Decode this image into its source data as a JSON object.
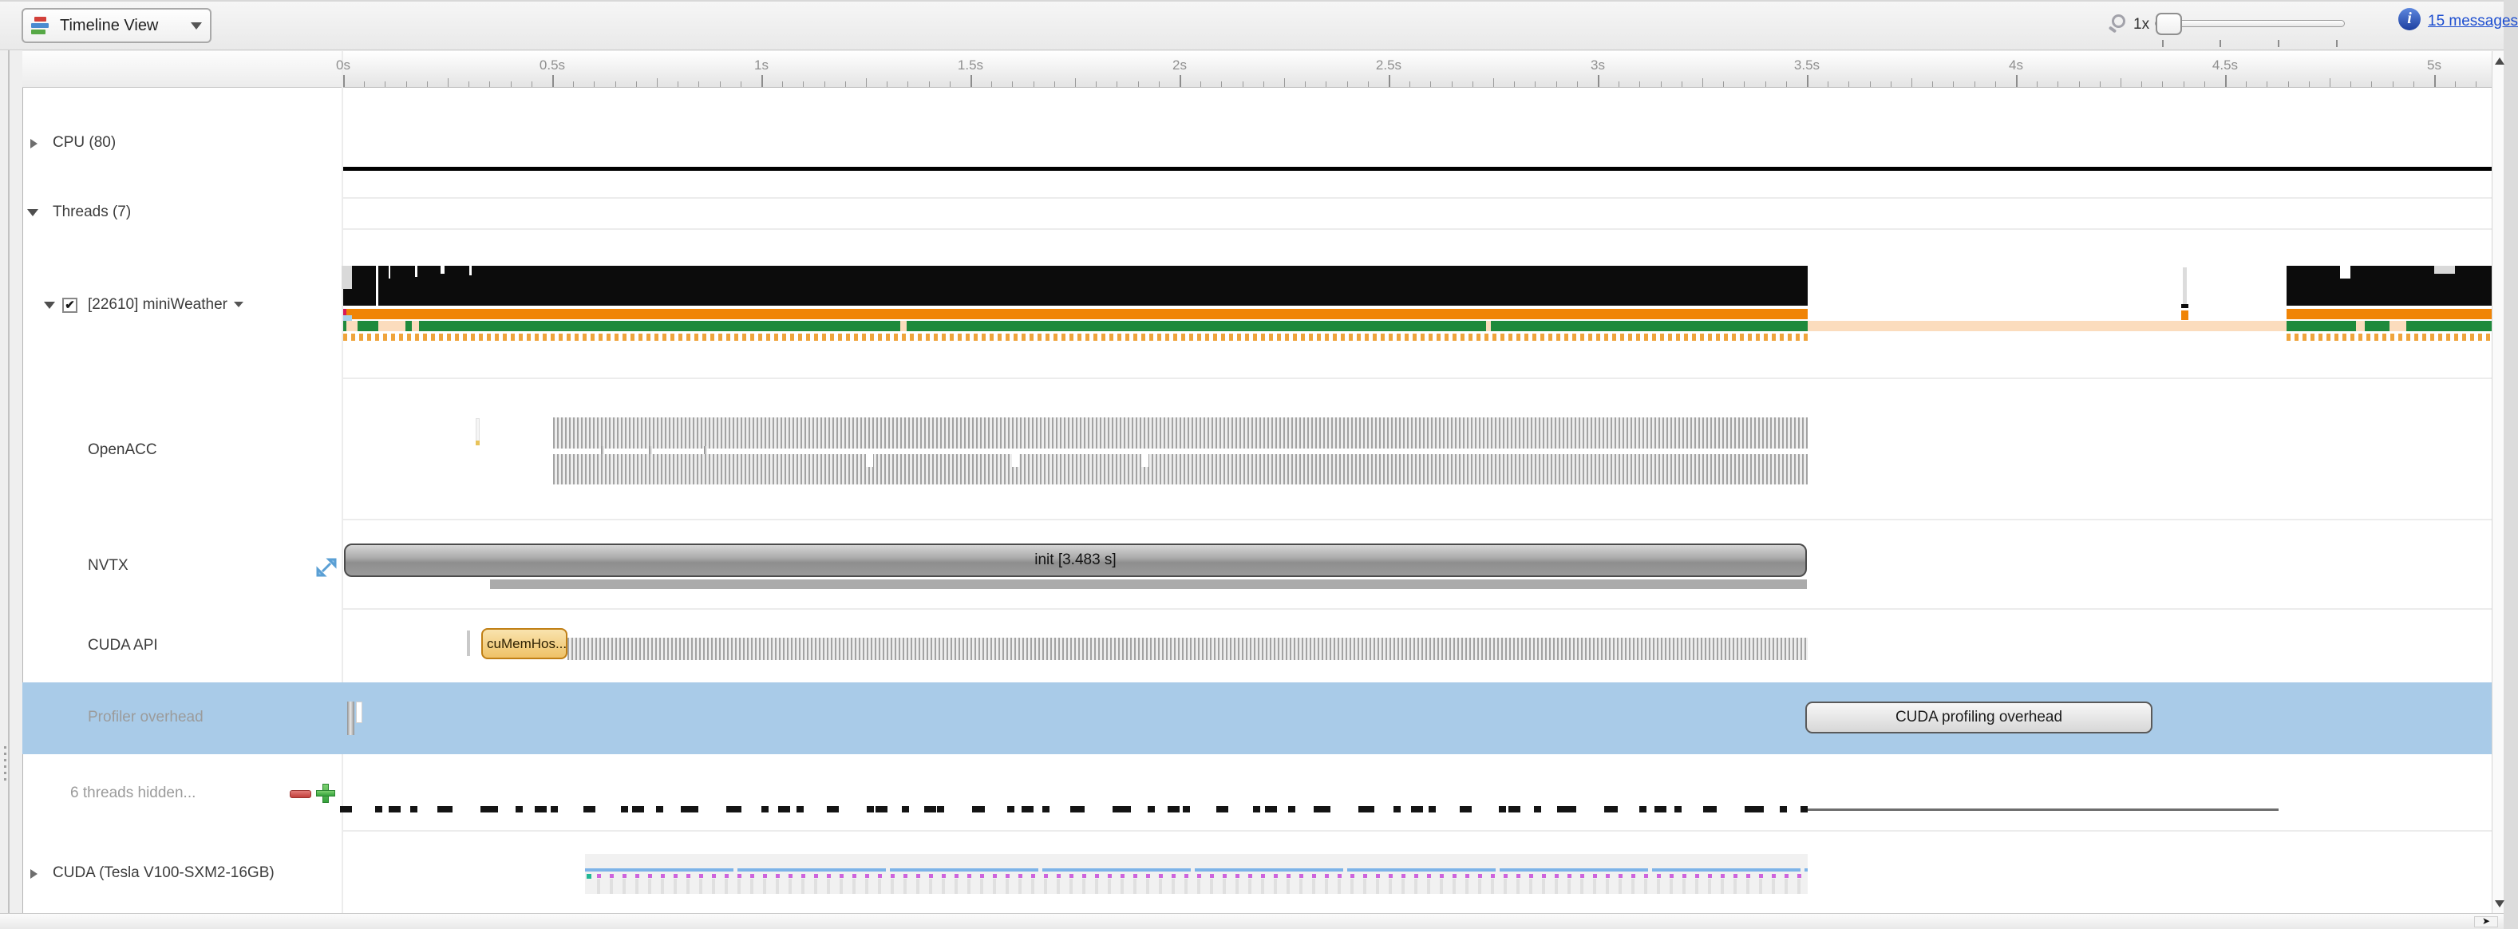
{
  "toolbar": {
    "view_selector_label": "Timeline View",
    "zoom_level": "1x",
    "messages_link": "15 messages"
  },
  "ruler": {
    "labels": [
      "0s",
      "0.5s",
      "1s",
      "1.5s",
      "2s",
      "2.5s",
      "3s",
      "3.5s",
      "4s",
      "4.5s",
      "5s"
    ]
  },
  "sidebar": {
    "rows": [
      {
        "label": "CPU (80)"
      },
      {
        "label": "Threads (7)"
      },
      {
        "label": "[22610] miniWeather"
      },
      {
        "label": "OpenACC"
      },
      {
        "label": "NVTX"
      },
      {
        "label": "CUDA API"
      },
      {
        "label": "Profiler overhead"
      },
      {
        "label": "6 threads hidden..."
      },
      {
        "label": "CUDA (Tesla V100-SXM2-16GB)"
      }
    ],
    "checkbox_glyph": "✔"
  },
  "timeline": {
    "nvtx_init_label": "init [3.483 s]",
    "cuda_api_first_label": "cuMemHos...",
    "profiler_overhead_label": "CUDA profiling overhead"
  },
  "colors": {
    "thread_black": "#0c0c0c",
    "os_runtime_orange": "#f08405",
    "thread_green": "#1e8a3c",
    "blocked_peach": "#fbdcbd",
    "selection_blue": "#a9cbe8",
    "link_blue": "#1d4ed0",
    "cuda_line_blue": "#7db3e8",
    "cuda_dot_magenta": "#ce64dd"
  }
}
